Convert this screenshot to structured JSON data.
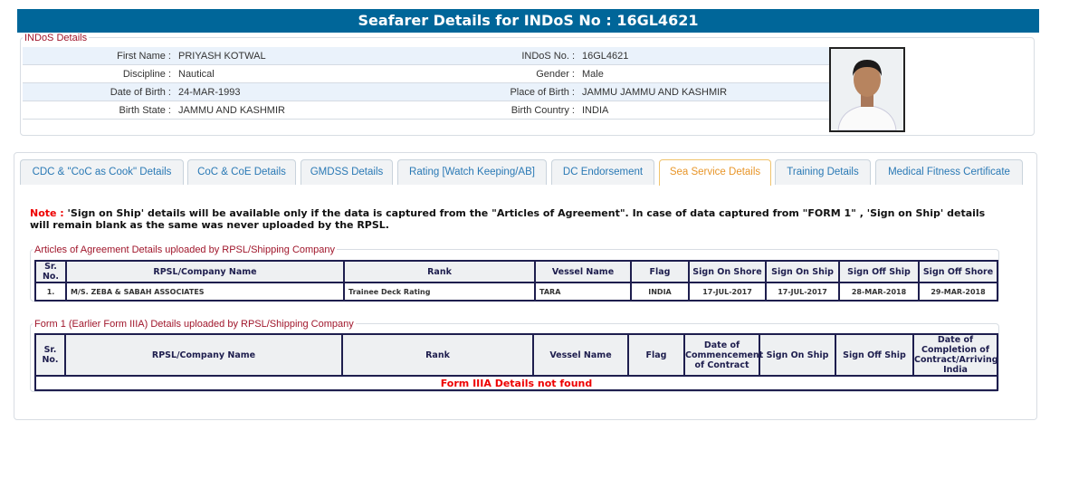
{
  "header": {
    "title": "Seafarer Details for INDoS No : 16GL4621"
  },
  "indos": {
    "legend": "INDoS Details",
    "rows": [
      {
        "l1": "First Name :",
        "v1": "PRIYASH KOTWAL",
        "l2": "INDoS No. :",
        "v2": "16GL4621"
      },
      {
        "l1": "Discipline :",
        "v1": "Nautical",
        "l2": "Gender :",
        "v2": "Male"
      },
      {
        "l1": "Date of Birth :",
        "v1": "24-MAR-1993",
        "l2": "Place of Birth :",
        "v2": "JAMMU JAMMU AND KASHMIR"
      },
      {
        "l1": "Birth State :",
        "v1": "JAMMU AND KASHMIR",
        "l2": "Birth Country :",
        "v2": "INDIA"
      }
    ]
  },
  "tabs": [
    "CDC & \"CoC as Cook\" Details",
    "CoC & CoE Details",
    "GMDSS Details",
    "Rating [Watch Keeping/AB]",
    "DC Endorsement",
    "Sea Service Details",
    "Training Details",
    "Medical Fitness Certificate"
  ],
  "active_tab": "Sea Service Details",
  "note": {
    "label": "Note :",
    "text": " 'Sign on Ship' details will be available only if the data is captured from the \"Articles of Agreement\". In case of data captured from \"FORM 1\" , 'Sign on Ship' details will remain blank as the same was never uploaded by the RPSL."
  },
  "aoa": {
    "legend": "Articles of Agreement Details uploaded by RPSL/Shipping Company",
    "headers": [
      "Sr. No.",
      "RPSL/Company Name",
      "Rank",
      "Vessel Name",
      "Flag",
      "Sign On Shore",
      "Sign On Ship",
      "Sign Off Ship",
      "Sign Off Shore"
    ],
    "rows": [
      [
        "1.",
        "M/S. ZEBA & SABAH ASSOCIATES",
        "Trainee Deck Rating",
        "TARA",
        "INDIA",
        "17-JUL-2017",
        "17-JUL-2017",
        "28-MAR-2018",
        "29-MAR-2018"
      ]
    ]
  },
  "form1": {
    "legend": "Form 1 (Earlier Form IIIA) Details uploaded by RPSL/Shipping Company",
    "headers": [
      "Sr. No.",
      "RPSL/Company Name",
      "Rank",
      "Vessel Name",
      "Flag",
      "Date of Commencement of Contract",
      "Sign On Ship",
      "Sign Off Ship",
      "Date of Completion of Contract/Arriving India"
    ],
    "empty": "Form IIIA Details not found"
  },
  "colors": {
    "header": "#006699",
    "legend": "#a0162b",
    "active_tab": "#e8962a",
    "tab_text": "#2a79b5",
    "error": "#e00000"
  }
}
